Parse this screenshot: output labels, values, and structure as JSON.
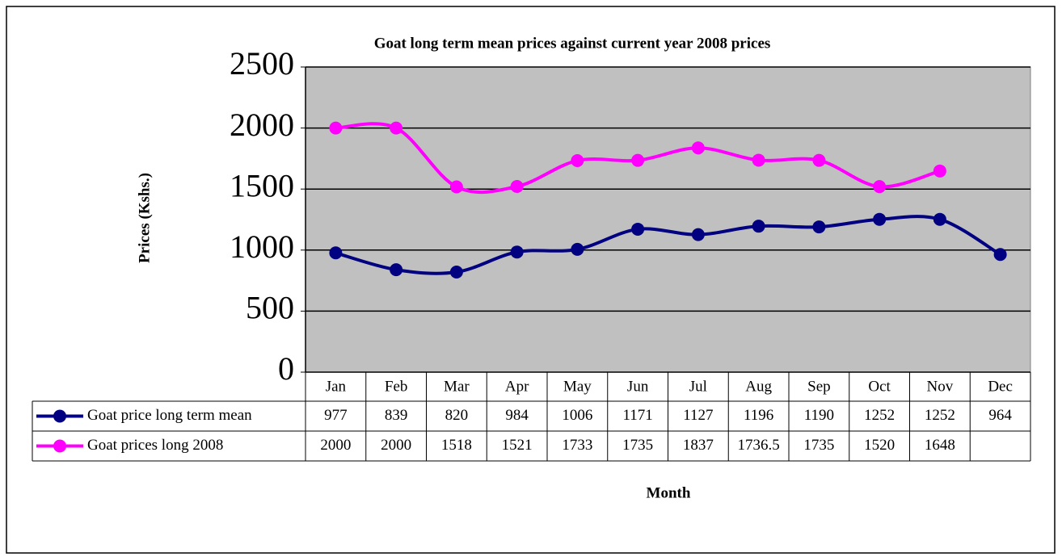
{
  "chart_data": {
    "type": "line",
    "title": "Goat long term mean prices against current year 2008 prices",
    "y_label": "Prices (Kshs.)",
    "x_label": "Month",
    "categories": [
      "Jan",
      "Feb",
      "Mar",
      "Apr",
      "May",
      "Jun",
      "Jul",
      "Aug",
      "Sep",
      "Oct",
      "Nov",
      "Dec"
    ],
    "series": [
      {
        "name": "Goat price long term mean",
        "color": "#000080",
        "values": [
          977,
          839,
          820,
          984,
          1006,
          1171,
          1127,
          1196,
          1190,
          1252,
          1252,
          964
        ]
      },
      {
        "name": "Goat prices long 2008",
        "color": "#ff00ff",
        "values": [
          2000,
          2000,
          1518,
          1521,
          1733,
          1735,
          1837,
          1736.5,
          1735,
          1520,
          1648,
          null
        ]
      }
    ],
    "ylim": [
      0,
      2500
    ],
    "yticks": [
      0,
      500,
      1000,
      1500,
      2000,
      2500
    ],
    "grid": true,
    "smooth": true,
    "plot_background": "#c0c0c0"
  }
}
